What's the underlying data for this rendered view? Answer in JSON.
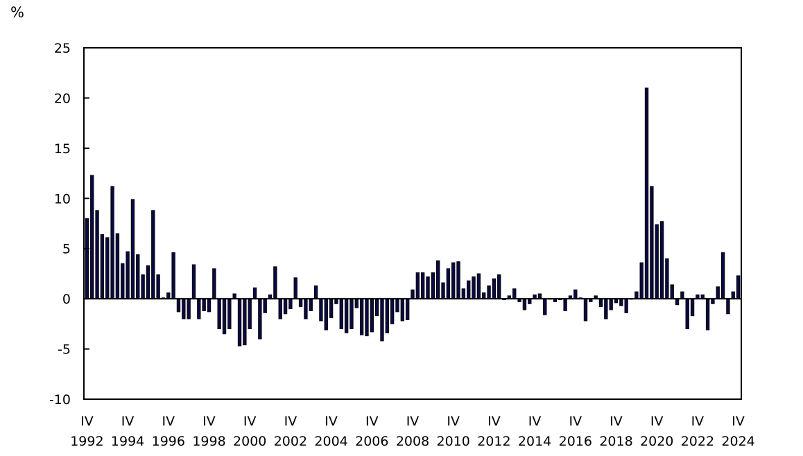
{
  "chart_data": {
    "type": "bar",
    "title": "",
    "ylabel": "%",
    "xlabel": "",
    "ylim": [
      -10,
      25
    ],
    "yticks": [
      25,
      20,
      15,
      10,
      5,
      0,
      -5,
      -10
    ],
    "grid": false,
    "legend": null,
    "bar_color": "#0a0a40",
    "x_label_rows": {
      "quarter": [
        "IV",
        "IV",
        "IV",
        "IV",
        "IV",
        "IV",
        "IV",
        "IV",
        "IV",
        "IV",
        "IV",
        "IV",
        "IV",
        "IV",
        "IV",
        "IV",
        "IV"
      ],
      "year": [
        "1992",
        "1994",
        "1996",
        "1998",
        "2000",
        "2002",
        "2004",
        "2006",
        "2008",
        "2010",
        "2012",
        "2014",
        "2016",
        "2018",
        "2020",
        "2022",
        "2024"
      ]
    },
    "start": "1992 IV",
    "end": "2024 IV",
    "frequency": "quarterly",
    "values": [
      8.0,
      12.3,
      8.8,
      6.4,
      6.1,
      11.2,
      6.5,
      3.5,
      4.7,
      9.9,
      4.4,
      2.4,
      3.3,
      8.8,
      2.4,
      0.1,
      0.6,
      4.6,
      -1.3,
      -2.0,
      -2.0,
      3.4,
      -2.0,
      -1.2,
      -1.3,
      3.0,
      -3.0,
      -3.5,
      -3.0,
      0.5,
      -4.7,
      -4.6,
      -3.0,
      1.1,
      -4.0,
      -1.4,
      0.4,
      3.2,
      -2.0,
      -1.5,
      -1.0,
      2.1,
      -0.8,
      -2.0,
      -1.2,
      1.3,
      -2.2,
      -3.1,
      -1.9,
      -0.5,
      -3.0,
      -3.4,
      -3.0,
      -0.9,
      -3.6,
      -3.7,
      -3.3,
      -1.7,
      -4.2,
      -3.4,
      -2.5,
      -1.3,
      -2.2,
      -2.1,
      0.9,
      2.6,
      2.6,
      2.2,
      2.6,
      3.8,
      1.6,
      3.0,
      3.6,
      3.7,
      1.0,
      1.8,
      2.2,
      2.5,
      0.6,
      1.3,
      2.0,
      2.4,
      -0.1,
      0.3,
      1.0,
      -0.3,
      -1.1,
      -0.5,
      0.4,
      0.5,
      -1.6,
      0.0,
      -0.3,
      -0.1,
      -1.2,
      0.3,
      0.9,
      0.1,
      -2.2,
      -0.3,
      0.3,
      -0.8,
      -2.0,
      -1.1,
      -0.4,
      -0.7,
      -1.4,
      0.0,
      0.7,
      3.6,
      21.0,
      11.2,
      7.4,
      7.7,
      4.0,
      1.4,
      -0.6,
      0.7,
      -3.0,
      -1.7,
      0.4,
      0.4,
      -3.1,
      -0.5,
      1.2,
      4.6,
      -1.5,
      0.7,
      2.3
    ]
  }
}
